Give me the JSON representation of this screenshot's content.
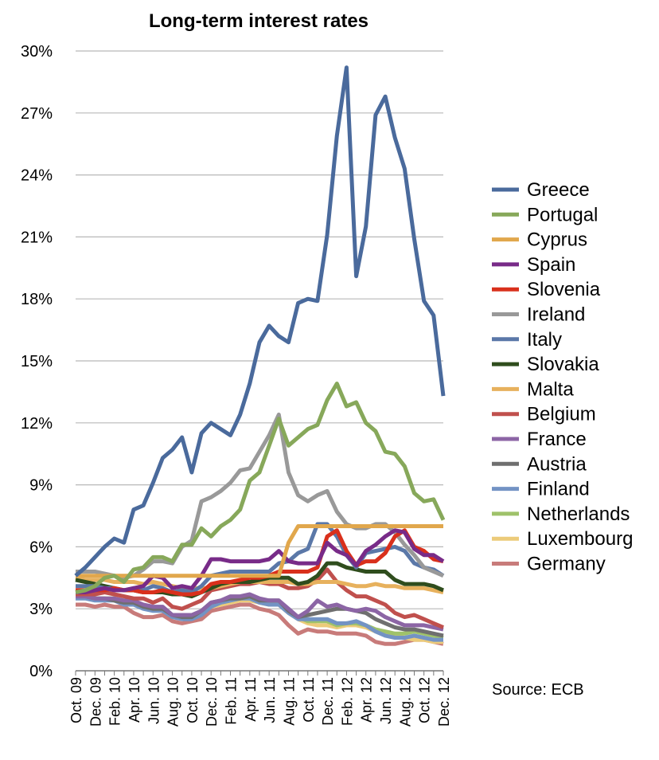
{
  "chart_data": {
    "type": "line",
    "title": "Long-term interest rates",
    "xlabel": "",
    "ylabel": "",
    "ylim": [
      0,
      30
    ],
    "yticks": [
      "0%",
      "3%",
      "6%",
      "9%",
      "12%",
      "15%",
      "18%",
      "21%",
      "24%",
      "27%",
      "30%"
    ],
    "grid": true,
    "legend_position": "right",
    "source": "Source: ECB",
    "x": [
      "Oct. 09",
      "Nov. 09",
      "Dec. 09",
      "Jan. 10",
      "Feb. 10",
      "Mar. 10",
      "Apr. 10",
      "May 10",
      "Jun. 10",
      "Jul. 10",
      "Aug. 10",
      "Sep. 10",
      "Oct. 10",
      "Nov. 10",
      "Dec. 10",
      "Jan. 11",
      "Feb. 11",
      "Mar. 11",
      "Apr. 11",
      "May 11",
      "Jun. 11",
      "Jul. 11",
      "Aug. 11",
      "Sep. 11",
      "Oct. 11",
      "Nov. 11",
      "Dec. 11",
      "Jan. 12",
      "Feb. 12",
      "Mar. 12",
      "Apr. 12",
      "May 12",
      "Jun. 12",
      "Jul. 12",
      "Aug. 12",
      "Sep. 12",
      "Oct. 12",
      "Nov. 12",
      "Dec. 12"
    ],
    "xticks": [
      "Oct. 09",
      "Dec. 09",
      "Feb. 10",
      "Apr. 10",
      "Jun. 10",
      "Aug. 10",
      "Oct. 10",
      "Dec. 10",
      "Feb. 11",
      "Apr. 11",
      "Jun. 11",
      "Aug. 11",
      "Oct. 11",
      "Dec. 11",
      "Feb. 12",
      "Apr. 12",
      "Jun. 12",
      "Aug. 12",
      "Oct. 12",
      "Dec. 12"
    ],
    "series": [
      {
        "name": "Greece",
        "color": "#4a6a9c",
        "values": [
          4.6,
          5.0,
          5.5,
          6.0,
          6.4,
          6.2,
          7.8,
          8.0,
          9.1,
          10.3,
          10.7,
          11.3,
          9.6,
          11.5,
          12.0,
          11.7,
          11.4,
          12.4,
          13.9,
          15.9,
          16.7,
          16.2,
          15.9,
          17.8,
          18.0,
          17.9,
          21.1,
          25.9,
          29.2,
          19.1,
          21.5,
          26.9,
          27.8,
          25.8,
          24.3,
          20.9,
          17.9,
          17.2,
          13.3
        ]
      },
      {
        "name": "Portugal",
        "color": "#87a85a",
        "values": [
          3.8,
          3.9,
          4.1,
          4.5,
          4.6,
          4.3,
          4.9,
          5.0,
          5.5,
          5.5,
          5.3,
          6.1,
          6.1,
          6.9,
          6.5,
          7.0,
          7.3,
          7.8,
          9.2,
          9.6,
          10.9,
          12.2,
          10.9,
          11.3,
          11.7,
          11.9,
          13.1,
          13.9,
          12.8,
          13.0,
          12.0,
          11.6,
          10.6,
          10.5,
          9.9,
          8.6,
          8.2,
          8.3,
          7.3
        ]
      },
      {
        "name": "Cyprus",
        "color": "#e1a74c",
        "values": [
          4.6,
          4.6,
          4.6,
          4.6,
          4.6,
          4.6,
          4.6,
          4.6,
          4.6,
          4.6,
          4.6,
          4.6,
          4.6,
          4.6,
          4.6,
          4.6,
          4.6,
          4.6,
          4.6,
          4.6,
          4.6,
          4.6,
          6.2,
          7.0,
          7.0,
          7.0,
          7.0,
          7.0,
          7.0,
          7.0,
          7.0,
          7.0,
          7.0,
          7.0,
          7.0,
          7.0,
          7.0,
          7.0,
          7.0
        ]
      },
      {
        "name": "Spain",
        "color": "#782b88",
        "values": [
          3.8,
          3.8,
          3.9,
          4.0,
          3.9,
          3.9,
          4.0,
          4.1,
          4.6,
          4.5,
          4.0,
          4.1,
          4.0,
          4.6,
          5.4,
          5.4,
          5.3,
          5.3,
          5.3,
          5.3,
          5.4,
          5.8,
          5.3,
          5.2,
          5.2,
          5.2,
          6.2,
          5.8,
          5.6,
          5.1,
          5.8,
          6.1,
          6.5,
          6.8,
          6.7,
          5.9,
          5.6,
          5.6,
          5.3
        ]
      },
      {
        "name": "Slovenia",
        "color": "#d9301c",
        "values": [
          3.9,
          3.9,
          3.9,
          3.9,
          4.0,
          3.9,
          3.9,
          3.8,
          3.8,
          3.9,
          3.8,
          3.7,
          3.7,
          3.8,
          4.2,
          4.3,
          4.3,
          4.4,
          4.5,
          4.5,
          4.6,
          4.8,
          4.8,
          4.8,
          4.8,
          5.0,
          6.5,
          6.8,
          5.8,
          5.1,
          5.3,
          5.3,
          5.7,
          6.5,
          6.8,
          6.0,
          5.8,
          5.4,
          5.3
        ]
      },
      {
        "name": "Ireland",
        "color": "#999999",
        "values": [
          4.8,
          4.8,
          4.8,
          4.7,
          4.6,
          4.5,
          4.6,
          4.9,
          5.3,
          5.3,
          5.2,
          6.0,
          6.3,
          8.2,
          8.4,
          8.7,
          9.1,
          9.7,
          9.8,
          10.6,
          11.4,
          12.4,
          9.6,
          8.5,
          8.2,
          8.5,
          8.7,
          7.7,
          7.1,
          6.9,
          6.9,
          7.1,
          7.1,
          6.7,
          6.1,
          5.6,
          5.0,
          4.8,
          4.6
        ]
      },
      {
        "name": "Italy",
        "color": "#5b78a8",
        "values": [
          4.1,
          4.1,
          4.1,
          4.0,
          4.0,
          3.9,
          4.0,
          3.9,
          4.1,
          4.0,
          3.8,
          3.9,
          3.8,
          4.1,
          4.6,
          4.7,
          4.8,
          4.8,
          4.8,
          4.8,
          4.8,
          5.2,
          5.3,
          5.7,
          5.9,
          7.1,
          7.1,
          6.5,
          5.6,
          5.0,
          5.7,
          5.8,
          5.9,
          6.0,
          5.8,
          5.2,
          5.0,
          4.9,
          4.6
        ]
      },
      {
        "name": "Slovakia",
        "color": "#2f4d1d",
        "values": [
          4.4,
          4.3,
          4.2,
          4.1,
          4.0,
          3.9,
          3.9,
          3.8,
          3.8,
          3.8,
          3.7,
          3.7,
          3.6,
          3.8,
          4.0,
          4.2,
          4.3,
          4.3,
          4.3,
          4.4,
          4.5,
          4.5,
          4.5,
          4.2,
          4.3,
          4.6,
          5.2,
          5.2,
          5.0,
          4.9,
          4.8,
          4.8,
          4.8,
          4.4,
          4.2,
          4.2,
          4.2,
          4.1,
          3.9
        ]
      },
      {
        "name": "Malta",
        "color": "#e7b15d",
        "values": [
          4.5,
          4.4,
          4.4,
          4.4,
          4.3,
          4.3,
          4.3,
          4.2,
          4.3,
          4.2,
          4.1,
          4.0,
          4.0,
          4.0,
          4.0,
          4.1,
          4.2,
          4.3,
          4.3,
          4.3,
          4.3,
          4.3,
          4.3,
          4.2,
          4.2,
          4.3,
          4.3,
          4.3,
          4.2,
          4.1,
          4.1,
          4.2,
          4.1,
          4.1,
          4.0,
          4.0,
          4.0,
          3.9,
          3.8
        ]
      },
      {
        "name": "Belgium",
        "color": "#c0504d",
        "values": [
          3.7,
          3.7,
          3.7,
          3.8,
          3.7,
          3.6,
          3.5,
          3.5,
          3.3,
          3.5,
          3.1,
          3.0,
          3.2,
          3.4,
          3.9,
          4.0,
          4.1,
          4.2,
          4.2,
          4.3,
          4.2,
          4.2,
          4.0,
          4.0,
          4.1,
          4.4,
          4.9,
          4.3,
          3.9,
          3.6,
          3.6,
          3.4,
          3.2,
          2.8,
          2.6,
          2.7,
          2.5,
          2.3,
          2.1
        ]
      },
      {
        "name": "France",
        "color": "#8c65a5",
        "values": [
          3.6,
          3.6,
          3.5,
          3.5,
          3.5,
          3.4,
          3.4,
          3.2,
          3.1,
          3.1,
          2.7,
          2.7,
          2.7,
          2.9,
          3.3,
          3.4,
          3.6,
          3.6,
          3.7,
          3.5,
          3.4,
          3.4,
          3.0,
          2.6,
          2.9,
          3.4,
          3.1,
          3.2,
          3.0,
          2.9,
          3.0,
          2.9,
          2.6,
          2.4,
          2.2,
          2.2,
          2.2,
          2.1,
          2.0
        ]
      },
      {
        "name": "Austria",
        "color": "#6f6f6f",
        "values": [
          3.6,
          3.6,
          3.5,
          3.5,
          3.4,
          3.3,
          3.3,
          3.1,
          3.0,
          3.0,
          2.7,
          2.6,
          2.6,
          2.9,
          3.3,
          3.4,
          3.5,
          3.5,
          3.6,
          3.4,
          3.4,
          3.4,
          2.9,
          2.6,
          2.7,
          2.8,
          2.9,
          3.0,
          3.0,
          2.9,
          2.8,
          2.5,
          2.3,
          2.1,
          2.0,
          2.0,
          1.9,
          1.8,
          1.7
        ]
      },
      {
        "name": "Finland",
        "color": "#7393c4",
        "values": [
          3.5,
          3.5,
          3.4,
          3.4,
          3.4,
          3.2,
          3.2,
          3.0,
          2.9,
          2.9,
          2.6,
          2.5,
          2.5,
          2.7,
          3.1,
          3.3,
          3.4,
          3.5,
          3.5,
          3.3,
          3.2,
          3.2,
          2.8,
          2.5,
          2.5,
          2.5,
          2.5,
          2.3,
          2.3,
          2.4,
          2.2,
          1.9,
          1.7,
          1.6,
          1.6,
          1.7,
          1.6,
          1.5,
          1.5
        ]
      },
      {
        "name": "Netherlands",
        "color": "#9fc26a",
        "values": [
          3.6,
          3.6,
          3.5,
          3.5,
          3.5,
          3.3,
          3.3,
          3.1,
          3.0,
          3.0,
          2.6,
          2.6,
          2.6,
          2.8,
          3.1,
          3.3,
          3.4,
          3.5,
          3.6,
          3.4,
          3.3,
          3.3,
          2.9,
          2.6,
          2.4,
          2.4,
          2.4,
          2.2,
          2.3,
          2.3,
          2.2,
          2.0,
          1.9,
          1.8,
          1.8,
          1.9,
          1.8,
          1.7,
          1.6
        ]
      },
      {
        "name": "Luxembourg",
        "color": "#eccb7a",
        "values": [
          3.6,
          3.6,
          3.5,
          3.5,
          3.5,
          3.4,
          3.3,
          3.1,
          3.0,
          3.0,
          2.6,
          2.6,
          2.6,
          2.8,
          3.1,
          3.2,
          3.3,
          3.4,
          3.4,
          3.3,
          3.2,
          3.2,
          2.8,
          2.5,
          2.3,
          2.2,
          2.2,
          2.1,
          2.2,
          2.2,
          2.1,
          1.9,
          1.8,
          1.7,
          1.6,
          1.5,
          1.5,
          1.4,
          1.4
        ]
      },
      {
        "name": "Germany",
        "color": "#c87b7a",
        "values": [
          3.2,
          3.2,
          3.1,
          3.2,
          3.1,
          3.1,
          2.8,
          2.6,
          2.6,
          2.7,
          2.4,
          2.3,
          2.4,
          2.5,
          2.9,
          3.0,
          3.1,
          3.2,
          3.2,
          3.0,
          2.9,
          2.7,
          2.2,
          1.8,
          2.0,
          1.9,
          1.9,
          1.8,
          1.8,
          1.8,
          1.7,
          1.4,
          1.3,
          1.3,
          1.4,
          1.5,
          1.5,
          1.4,
          1.3
        ]
      }
    ]
  }
}
